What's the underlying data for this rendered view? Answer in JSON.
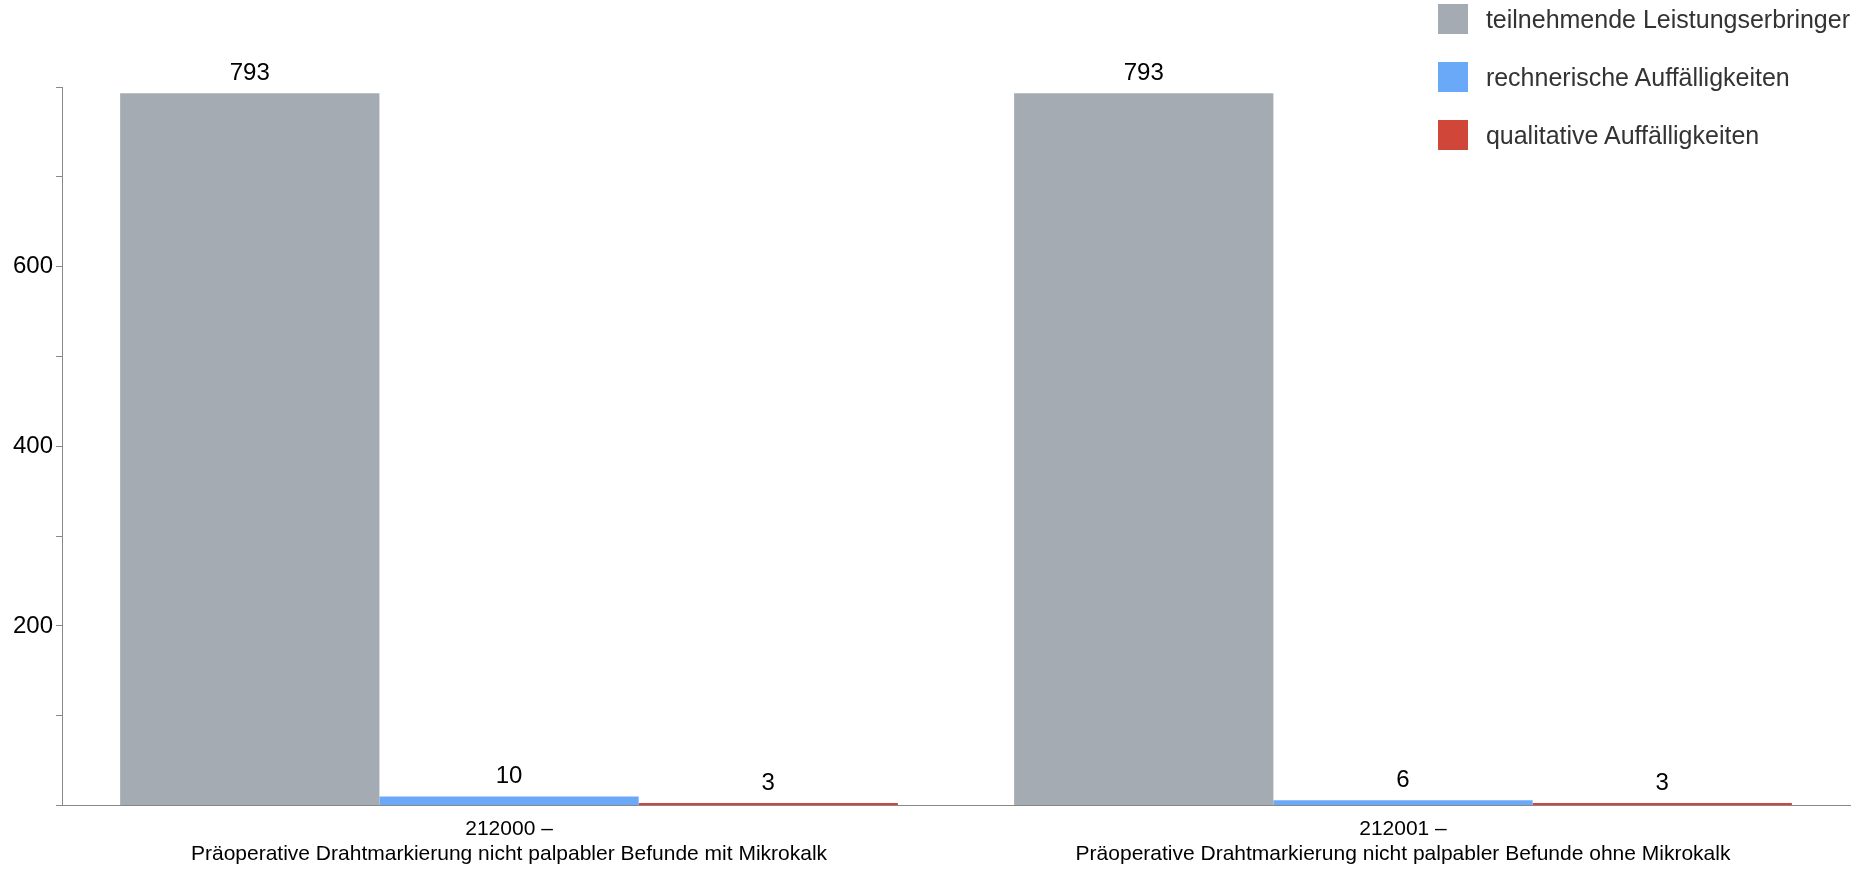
{
  "chart_data": {
    "type": "bar",
    "categories": [
      "212000 –\nPräoperative Drahtmarkierung nicht palpabler Befunde mit Mikrokalk",
      "212001 –\nPräoperative Drahtmarkierung nicht palpabler Befunde ohne Mikrokalk"
    ],
    "series": [
      {
        "name": "teilnehmende Leistungserbringer",
        "color": "#a4abb2",
        "values": [
          793,
          793
        ]
      },
      {
        "name": "rechnerische Auffälligkeiten",
        "color": "#6aa9f7",
        "values": [
          10,
          6
        ]
      },
      {
        "name": "qualitative Auffälligkeiten",
        "color": "#d0473a",
        "values": [
          3,
          3
        ]
      }
    ],
    "ylim": [
      0,
      800
    ],
    "yticks": [
      {
        "value": 0,
        "label": null
      },
      {
        "value": 100,
        "label": null
      },
      200,
      {
        "value": 300,
        "label": null
      },
      400,
      {
        "value": 500,
        "label": null
      },
      600,
      {
        "value": 700,
        "label": null
      },
      {
        "value": 800,
        "label": null
      }
    ],
    "grid": false,
    "legend": "top right",
    "data_labels": true
  }
}
